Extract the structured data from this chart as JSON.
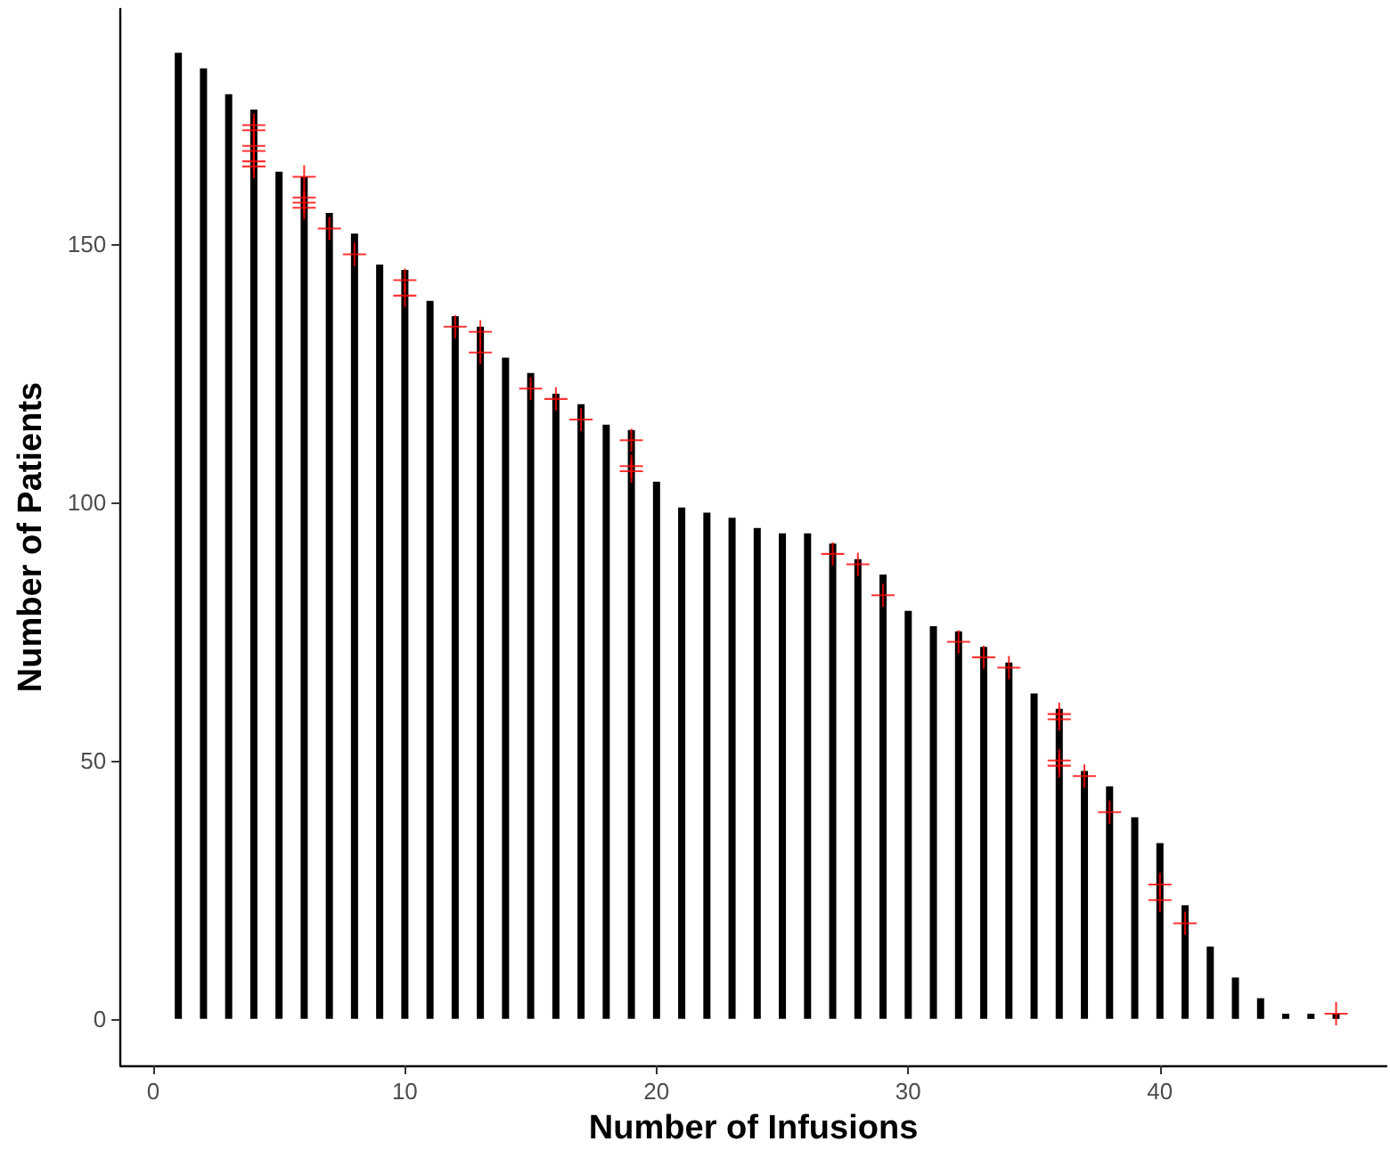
{
  "chart_data": {
    "type": "bar",
    "xlabel": "Number of Infusions",
    "ylabel": "Number of Patients",
    "xlim": [
      -1.3,
      49
    ],
    "xticks": [
      0,
      10,
      20,
      30,
      40
    ],
    "ylim": [
      -9,
      195.5
    ],
    "yticks": [
      0,
      50,
      100,
      150
    ],
    "grid": false,
    "series": [
      {
        "color": "#000000",
        "x": [
          1,
          2,
          3,
          4,
          5,
          6,
          7,
          8,
          9,
          10,
          11,
          12,
          13,
          14,
          15,
          16,
          17,
          18,
          19,
          20,
          21,
          22,
          23,
          24,
          25,
          26,
          27,
          28,
          29,
          30,
          31,
          32,
          33,
          34,
          35,
          36,
          37,
          38,
          39,
          40,
          41,
          42,
          43,
          44,
          45,
          46,
          47
        ],
        "values": [
          187,
          184,
          179,
          176,
          164,
          163,
          156,
          152,
          146,
          145,
          139,
          136,
          134,
          128,
          125,
          121,
          119,
          115,
          114,
          104,
          99,
          98,
          97,
          95,
          94,
          94,
          92,
          89,
          86,
          79,
          76,
          75,
          72,
          69,
          63,
          60,
          48,
          45,
          39,
          34,
          22,
          14,
          8,
          4,
          1,
          1,
          1
        ]
      },
      {
        "type": "scatter",
        "color": "#ff0000",
        "marker": "cross",
        "x": [
          4,
          4,
          4,
          4,
          4,
          4,
          6,
          6,
          6,
          6,
          7,
          8,
          10,
          10,
          12,
          13,
          13,
          15,
          16,
          17,
          19,
          19,
          19,
          27,
          28,
          29,
          32,
          33,
          34,
          36,
          36,
          36,
          36,
          37,
          38,
          40,
          40,
          41,
          47
        ],
        "values": [
          173,
          172,
          169,
          168,
          166,
          165,
          163,
          159,
          158,
          157,
          153,
          148,
          143,
          140,
          134,
          133,
          129,
          122,
          120,
          116,
          112,
          107,
          106,
          90,
          88,
          82,
          73,
          70,
          68,
          59,
          58,
          50,
          49,
          47,
          40,
          26,
          23,
          18.5,
          1
        ]
      }
    ]
  }
}
